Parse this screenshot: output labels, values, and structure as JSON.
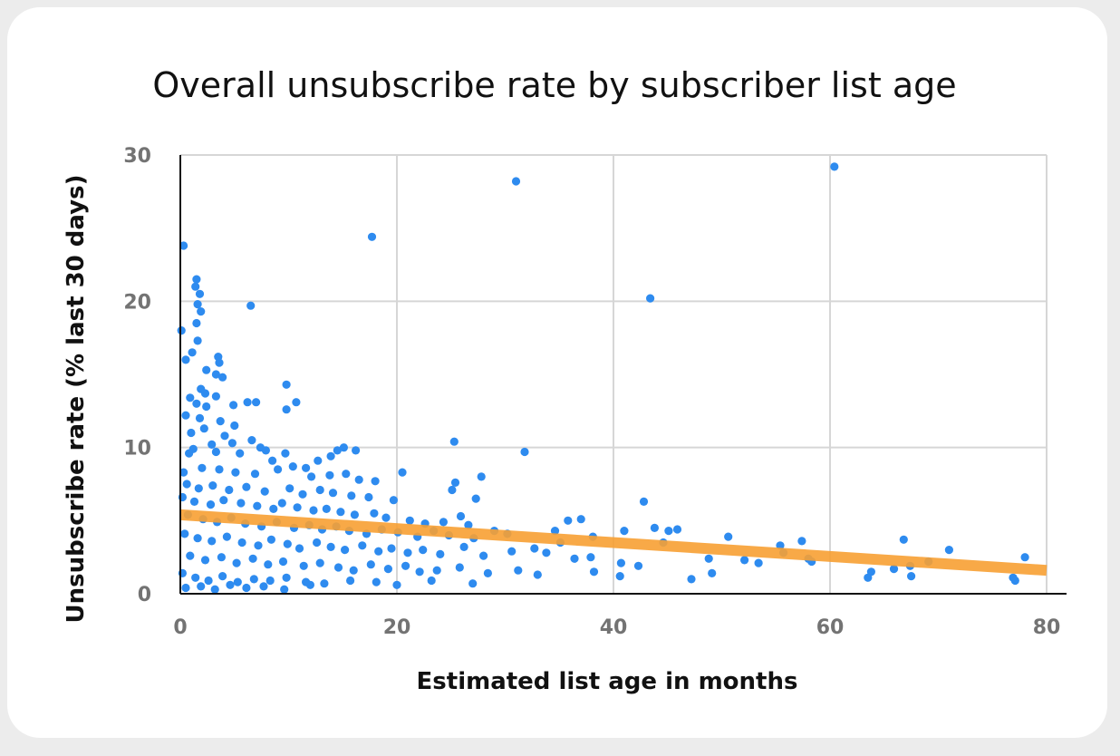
{
  "chart_data": {
    "type": "scatter",
    "title": "Overall unsubscribe rate by subscriber list age",
    "xlabel": "Estimated list age in months",
    "ylabel": "Unsubscribe rate (% last 30 days)",
    "xlim": [
      0,
      80
    ],
    "ylim": [
      0,
      30
    ],
    "x_ticks": [
      "0",
      "20",
      "40",
      "60",
      "80"
    ],
    "y_ticks": [
      "0",
      "10",
      "20",
      "30"
    ],
    "grid": true,
    "legend": "none",
    "point_color": "#2e8bef",
    "trendline_color": "#f7a033",
    "trendline": {
      "x": [
        0,
        80
      ],
      "y": [
        5.4,
        1.6
      ]
    },
    "points": [
      [
        0.3,
        23.8
      ],
      [
        0.1,
        18.0
      ],
      [
        1.5,
        21.5
      ],
      [
        1.4,
        21.0
      ],
      [
        1.8,
        20.5
      ],
      [
        1.6,
        19.8
      ],
      [
        1.9,
        19.3
      ],
      [
        1.5,
        18.5
      ],
      [
        6.5,
        19.7
      ],
      [
        1.6,
        17.3
      ],
      [
        1.1,
        16.5
      ],
      [
        0.5,
        16.0
      ],
      [
        3.5,
        16.2
      ],
      [
        3.6,
        15.8
      ],
      [
        2.4,
        15.3
      ],
      [
        3.3,
        15.0
      ],
      [
        3.9,
        14.8
      ],
      [
        9.8,
        14.3
      ],
      [
        1.9,
        14.0
      ],
      [
        2.3,
        13.7
      ],
      [
        3.3,
        13.5
      ],
      [
        0.9,
        13.4
      ],
      [
        1.5,
        13.0
      ],
      [
        2.4,
        12.8
      ],
      [
        4.9,
        12.9
      ],
      [
        6.2,
        13.1
      ],
      [
        7.0,
        13.1
      ],
      [
        10.7,
        13.1
      ],
      [
        9.8,
        12.6
      ],
      [
        0.5,
        12.2
      ],
      [
        1.8,
        12.0
      ],
      [
        3.7,
        11.8
      ],
      [
        5.0,
        11.5
      ],
      [
        2.2,
        11.3
      ],
      [
        1.0,
        11.0
      ],
      [
        4.1,
        10.8
      ],
      [
        6.6,
        10.5
      ],
      [
        2.9,
        10.2
      ],
      [
        4.8,
        10.3
      ],
      [
        7.4,
        10.0
      ],
      [
        1.2,
        9.9
      ],
      [
        0.8,
        9.6
      ],
      [
        3.3,
        9.7
      ],
      [
        5.5,
        9.6
      ],
      [
        7.9,
        9.8
      ],
      [
        9.7,
        9.6
      ],
      [
        14.5,
        9.8
      ],
      [
        16.2,
        9.8
      ],
      [
        15.1,
        10.0
      ],
      [
        25.3,
        10.4
      ],
      [
        31.8,
        9.7
      ],
      [
        8.5,
        9.1
      ],
      [
        10.4,
        8.7
      ],
      [
        12.7,
        9.1
      ],
      [
        13.9,
        9.4
      ],
      [
        11.6,
        8.6
      ],
      [
        0.3,
        8.3
      ],
      [
        2.0,
        8.6
      ],
      [
        3.6,
        8.5
      ],
      [
        5.1,
        8.3
      ],
      [
        6.9,
        8.2
      ],
      [
        9.0,
        8.5
      ],
      [
        12.1,
        8.0
      ],
      [
        13.8,
        8.1
      ],
      [
        15.3,
        8.2
      ],
      [
        16.5,
        7.8
      ],
      [
        18.0,
        7.7
      ],
      [
        20.5,
        8.3
      ],
      [
        25.4,
        7.6
      ],
      [
        27.8,
        8.0
      ],
      [
        0.6,
        7.5
      ],
      [
        1.7,
        7.2
      ],
      [
        3.0,
        7.4
      ],
      [
        4.5,
        7.1
      ],
      [
        6.1,
        7.3
      ],
      [
        7.8,
        7.0
      ],
      [
        10.1,
        7.2
      ],
      [
        11.3,
        6.8
      ],
      [
        12.9,
        7.1
      ],
      [
        14.1,
        6.9
      ],
      [
        15.8,
        6.7
      ],
      [
        17.4,
        6.6
      ],
      [
        19.7,
        6.4
      ],
      [
        25.1,
        7.1
      ],
      [
        27.3,
        6.5
      ],
      [
        42.8,
        6.3
      ],
      [
        0.2,
        6.6
      ],
      [
        1.3,
        6.3
      ],
      [
        2.8,
        6.1
      ],
      [
        4.0,
        6.4
      ],
      [
        5.6,
        6.2
      ],
      [
        7.1,
        6.0
      ],
      [
        8.6,
        5.8
      ],
      [
        9.4,
        6.2
      ],
      [
        10.8,
        5.9
      ],
      [
        12.3,
        5.7
      ],
      [
        13.5,
        5.8
      ],
      [
        14.8,
        5.6
      ],
      [
        16.1,
        5.4
      ],
      [
        17.9,
        5.5
      ],
      [
        19.0,
        5.2
      ],
      [
        21.2,
        5.0
      ],
      [
        22.6,
        4.8
      ],
      [
        24.3,
        4.9
      ],
      [
        25.9,
        5.3
      ],
      [
        26.6,
        4.7
      ],
      [
        35.8,
        5.0
      ],
      [
        37.0,
        5.1
      ],
      [
        0.7,
        5.4
      ],
      [
        2.1,
        5.1
      ],
      [
        3.4,
        4.9
      ],
      [
        4.7,
        5.2
      ],
      [
        6.0,
        4.8
      ],
      [
        7.5,
        4.6
      ],
      [
        8.9,
        4.9
      ],
      [
        10.5,
        4.5
      ],
      [
        11.9,
        4.7
      ],
      [
        13.1,
        4.4
      ],
      [
        14.4,
        4.6
      ],
      [
        15.6,
        4.3
      ],
      [
        17.2,
        4.1
      ],
      [
        18.6,
        4.4
      ],
      [
        20.1,
        4.2
      ],
      [
        21.9,
        3.9
      ],
      [
        23.4,
        4.3
      ],
      [
        24.8,
        4.0
      ],
      [
        27.1,
        3.8
      ],
      [
        29.0,
        4.3
      ],
      [
        30.2,
        4.1
      ],
      [
        34.6,
        4.3
      ],
      [
        38.1,
        3.9
      ],
      [
        41.0,
        4.3
      ],
      [
        43.8,
        4.5
      ],
      [
        45.1,
        4.3
      ],
      [
        45.9,
        4.4
      ],
      [
        44.6,
        3.5
      ],
      [
        50.6,
        3.9
      ],
      [
        55.4,
        3.3
      ],
      [
        57.4,
        3.6
      ],
      [
        66.8,
        3.7
      ],
      [
        0.4,
        4.1
      ],
      [
        1.6,
        3.8
      ],
      [
        2.9,
        3.6
      ],
      [
        4.3,
        3.9
      ],
      [
        5.7,
        3.5
      ],
      [
        7.2,
        3.3
      ],
      [
        8.4,
        3.7
      ],
      [
        9.9,
        3.4
      ],
      [
        11.0,
        3.1
      ],
      [
        12.6,
        3.5
      ],
      [
        13.9,
        3.2
      ],
      [
        15.2,
        3.0
      ],
      [
        16.8,
        3.3
      ],
      [
        18.3,
        2.9
      ],
      [
        19.5,
        3.1
      ],
      [
        21.0,
        2.8
      ],
      [
        22.4,
        3.0
      ],
      [
        24.0,
        2.7
      ],
      [
        26.2,
        3.2
      ],
      [
        28.0,
        2.6
      ],
      [
        30.6,
        2.9
      ],
      [
        32.7,
        3.1
      ],
      [
        33.8,
        2.8
      ],
      [
        35.1,
        3.5
      ],
      [
        36.4,
        2.4
      ],
      [
        37.9,
        2.5
      ],
      [
        40.7,
        2.1
      ],
      [
        42.3,
        1.9
      ],
      [
        48.8,
        2.4
      ],
      [
        52.1,
        2.3
      ],
      [
        53.4,
        2.1
      ],
      [
        55.7,
        2.8
      ],
      [
        58.0,
        2.4
      ],
      [
        58.3,
        2.2
      ],
      [
        63.8,
        1.5
      ],
      [
        65.9,
        1.7
      ],
      [
        67.4,
        1.9
      ],
      [
        69.1,
        2.2
      ],
      [
        71.0,
        3.0
      ],
      [
        78.0,
        2.5
      ],
      [
        0.9,
        2.6
      ],
      [
        2.3,
        2.3
      ],
      [
        3.8,
        2.5
      ],
      [
        5.2,
        2.1
      ],
      [
        6.7,
        2.4
      ],
      [
        8.1,
        2.0
      ],
      [
        9.5,
        2.2
      ],
      [
        11.4,
        1.9
      ],
      [
        12.9,
        2.1
      ],
      [
        14.6,
        1.8
      ],
      [
        16.0,
        1.6
      ],
      [
        17.6,
        2.0
      ],
      [
        19.2,
        1.7
      ],
      [
        20.8,
        1.9
      ],
      [
        22.1,
        1.5
      ],
      [
        23.7,
        1.6
      ],
      [
        25.8,
        1.8
      ],
      [
        28.4,
        1.4
      ],
      [
        31.2,
        1.6
      ],
      [
        33.0,
        1.3
      ],
      [
        38.2,
        1.5
      ],
      [
        40.6,
        1.2
      ],
      [
        47.2,
        1.0
      ],
      [
        49.1,
        1.4
      ],
      [
        63.5,
        1.1
      ],
      [
        67.5,
        1.2
      ],
      [
        76.9,
        1.1
      ],
      [
        77.1,
        0.9
      ],
      [
        0.2,
        1.4
      ],
      [
        1.4,
        1.1
      ],
      [
        2.6,
        0.9
      ],
      [
        3.9,
        1.2
      ],
      [
        5.3,
        0.8
      ],
      [
        6.8,
        1.0
      ],
      [
        8.3,
        0.9
      ],
      [
        9.8,
        1.1
      ],
      [
        11.6,
        0.8
      ],
      [
        13.3,
        0.7
      ],
      [
        15.7,
        0.9
      ],
      [
        18.1,
        0.8
      ],
      [
        20.0,
        0.6
      ],
      [
        23.2,
        0.9
      ],
      [
        27.0,
        0.7
      ],
      [
        0.5,
        0.4
      ],
      [
        1.9,
        0.5
      ],
      [
        3.2,
        0.3
      ],
      [
        4.6,
        0.6
      ],
      [
        6.1,
        0.4
      ],
      [
        7.7,
        0.5
      ],
      [
        9.6,
        0.3
      ],
      [
        12.0,
        0.6
      ],
      [
        17.7,
        24.4
      ],
      [
        31.0,
        28.2
      ],
      [
        43.4,
        20.2
      ],
      [
        60.4,
        29.2
      ]
    ]
  }
}
